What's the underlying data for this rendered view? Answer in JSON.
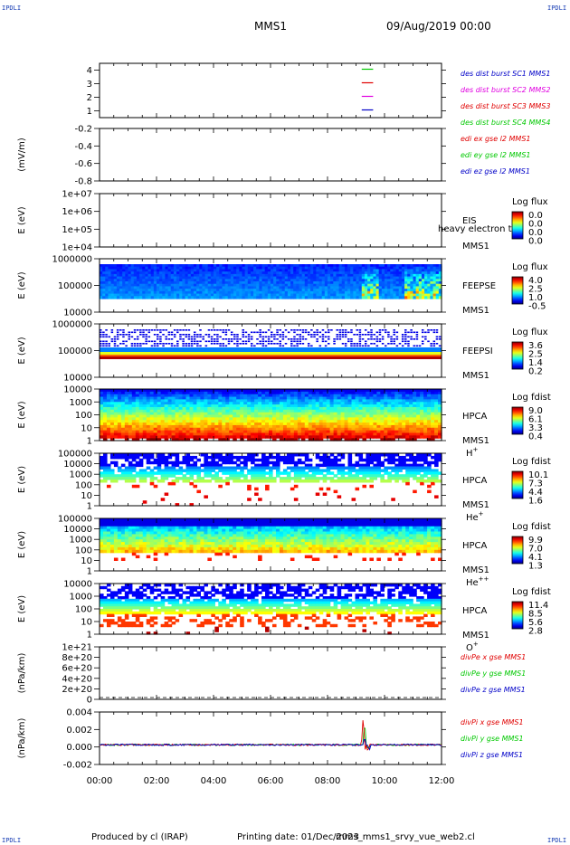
{
  "header": {
    "corner_tl": "IPDLI",
    "corner_tr": "IPDLI",
    "corner_bl": "IPDLI",
    "corner_br": "IPDLI",
    "spacecraft": "MMS1",
    "date": "09/Aug/2019 00:00"
  },
  "footer": {
    "produced": "Produced by cl (IRAP)",
    "printed": "Printing date: 01/Dec/2023",
    "script": "mms_mms1_srvy_vue_web2.cl"
  },
  "colors": {
    "blue": "#0000c8",
    "red": "#e00000",
    "green": "#00c800",
    "magenta": "#e000e0"
  },
  "chart_data": [
    {
      "type": "line",
      "panel": "burst",
      "ylabel": "",
      "yticks": [
        "4",
        "3",
        "2",
        "1"
      ],
      "xlim": [
        "00:00",
        "12:00"
      ],
      "series": [
        {
          "name": "des dist burst SC1 MMS1",
          "color": "#0000c8",
          "y": 1,
          "x": [
            9.2,
            9.6
          ]
        },
        {
          "name": "des dist burst SC2 MMS2",
          "color": "#e000e0",
          "y": 2,
          "x": [
            9.2,
            9.6
          ]
        },
        {
          "name": "des dist burst SC3 MMS3",
          "color": "#e00000",
          "y": 3,
          "x": [
            9.2,
            9.6
          ]
        },
        {
          "name": "des dist burst SC4 MMS4",
          "color": "#00c800",
          "y": 4,
          "x": [
            9.2,
            9.6
          ]
        }
      ]
    },
    {
      "type": "line",
      "panel": "edi",
      "ylabel": "(mV/m)",
      "yticks": [
        "-0.2",
        "-0.4",
        "-0.6",
        "-0.8"
      ],
      "series": [
        {
          "name": "edi ex gse l2 MMS1",
          "color": "#e00000",
          "values": []
        },
        {
          "name": "edi ey gse l2 MMS1",
          "color": "#00c800",
          "values": []
        },
        {
          "name": "edi ez gse l2 MMS1",
          "color": "#0000c8",
          "values": []
        }
      ]
    },
    {
      "type": "heatmap",
      "panel": "eis",
      "ylabel": "E (eV)",
      "yticks": [
        "1e+07",
        "1e+06",
        "1e+05",
        "1e+04"
      ],
      "instrument": "EIS",
      "spacecraft": "MMS1",
      "extra_label": "heavy electron to",
      "colorbar_title": "Log flux",
      "colorbar_ticks": [
        "0.0",
        "0.0",
        "0.0",
        "0.0"
      ]
    },
    {
      "type": "heatmap",
      "panel": "feeps_e",
      "ylabel": "E (eV)",
      "yticks": [
        "1000000",
        "100000",
        "10000"
      ],
      "instrument": "FEEPSE",
      "spacecraft": "MMS1",
      "colorbar_title": "Log flux",
      "colorbar_ticks": [
        "4.0",
        "2.5",
        "1.0",
        "-0.5"
      ]
    },
    {
      "type": "heatmap",
      "panel": "feeps_i",
      "ylabel": "E (eV)",
      "yticks": [
        "1000000",
        "100000",
        "10000"
      ],
      "instrument": "FEEPSI",
      "spacecraft": "MMS1",
      "colorbar_title": "Log flux",
      "colorbar_ticks": [
        "3.6",
        "2.5",
        "1.4",
        "0.2"
      ]
    },
    {
      "type": "heatmap",
      "panel": "hpca_h",
      "ylabel": "E (eV)",
      "yticks": [
        "10000",
        "1000",
        "100",
        "10",
        "1"
      ],
      "instrument": "HPCA",
      "spacecraft": "MMS1",
      "species": "H",
      "charge": "+",
      "colorbar_title": "Log fdist",
      "colorbar_ticks": [
        "9.0",
        "6.1",
        "3.3",
        "0.4"
      ]
    },
    {
      "type": "heatmap",
      "panel": "hpca_he1",
      "ylabel": "E (eV)",
      "yticks": [
        "100000",
        "10000",
        "1000",
        "100",
        "10",
        "1"
      ],
      "instrument": "HPCA",
      "spacecraft": "MMS1",
      "species": "He",
      "charge": "+",
      "colorbar_title": "Log fdist",
      "colorbar_ticks": [
        "10.1",
        "7.3",
        "4.4",
        "1.6"
      ]
    },
    {
      "type": "heatmap",
      "panel": "hpca_he2",
      "ylabel": "E (eV)",
      "yticks": [
        "100000",
        "10000",
        "1000",
        "100",
        "10",
        "1"
      ],
      "instrument": "HPCA",
      "spacecraft": "MMS1",
      "species": "He",
      "charge": "++",
      "colorbar_title": "Log fdist",
      "colorbar_ticks": [
        "9.9",
        "7.0",
        "4.1",
        "1.3"
      ]
    },
    {
      "type": "heatmap",
      "panel": "hpca_o",
      "ylabel": "E (eV)",
      "yticks": [
        "10000",
        "1000",
        "100",
        "10",
        "1"
      ],
      "instrument": "HPCA",
      "spacecraft": "MMS1",
      "species": "O",
      "charge": "+",
      "colorbar_title": "Log fdist",
      "colorbar_ticks": [
        "11.4",
        "8.5",
        "5.6",
        "2.8"
      ]
    },
    {
      "type": "line",
      "panel": "divpe",
      "ylabel": "(nPa/km)",
      "yticks": [
        "1e+21",
        "8e+20",
        "6e+20",
        "4e+20",
        "2e+20",
        "0"
      ],
      "series": [
        {
          "name": "divPe x gse MMS1",
          "color": "#e00000",
          "values": []
        },
        {
          "name": "divPe y gse MMS1",
          "color": "#00c800",
          "values": []
        },
        {
          "name": "divPe z gse MMS1",
          "color": "#0000c8",
          "values": []
        }
      ]
    },
    {
      "type": "line",
      "panel": "divpi",
      "ylabel": "(nPa/km)",
      "yticks": [
        "0.004",
        "0.002",
        "0.000",
        "-0.002"
      ],
      "ylim": [
        -0.003,
        0.005
      ],
      "series": [
        {
          "name": "divPi x gse MMS1",
          "color": "#e00000",
          "spike_time": 9.25,
          "spike_peak": 0.0045
        },
        {
          "name": "divPi y gse MMS1",
          "color": "#00c800",
          "spike_time": 9.3,
          "spike_peak": 0.0038
        },
        {
          "name": "divPi z gse MMS1",
          "color": "#0000c8",
          "spike_time": 9.3,
          "spike_peak": 0.0012
        }
      ],
      "xticks": [
        "00:00",
        "02:00",
        "04:00",
        "06:00",
        "08:00",
        "10:00",
        "12:00"
      ]
    }
  ]
}
